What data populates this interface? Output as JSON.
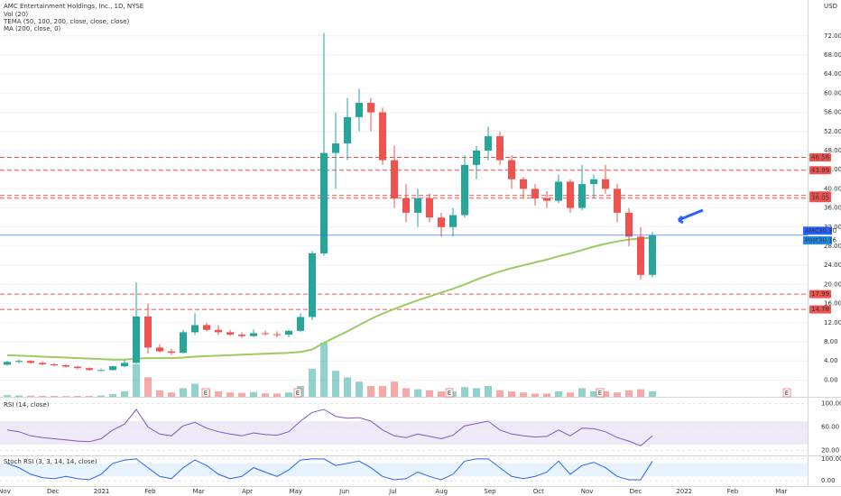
{
  "chart_data": {
    "type": "candlestick",
    "title": "AMC Entertainment Holdings, Inc., 1D, NYSE",
    "indicators": [
      "Vol (20)",
      "TEMA (50, 100, 200, close, close, close)",
      "MA (200, close, 0)"
    ],
    "currency": "USD",
    "up_color": "#26a69a",
    "down_color": "#ef5350",
    "xticks": [
      "Nov",
      "Dec",
      "2021",
      "Feb",
      "Mar",
      "Apr",
      "May",
      "Jun",
      "Jul",
      "Aug",
      "Sep",
      "Oct",
      "Nov",
      "Dec",
      "2022",
      "Feb",
      "Mar"
    ],
    "ylim": [
      -3.5,
      79.5
    ],
    "yticks": [
      {
        "value": 0,
        "label": "0.00"
      },
      {
        "value": 4,
        "label": "4.00"
      },
      {
        "value": 8,
        "label": "8.00"
      },
      {
        "value": 12,
        "label": "12.00"
      },
      {
        "value": 16,
        "label": "16.00"
      },
      {
        "value": 20,
        "label": "20.00"
      },
      {
        "value": 24,
        "label": "24.00"
      },
      {
        "value": 28,
        "label": "28.00"
      },
      {
        "value": 32,
        "label": "32.00"
      },
      {
        "value": 36,
        "label": "36.00"
      },
      {
        "value": 40,
        "label": "40.00"
      },
      {
        "value": 44,
        "label": "44.00"
      },
      {
        "value": 48,
        "label": "48.00"
      },
      {
        "value": 52,
        "label": "52.00"
      },
      {
        "value": 56,
        "label": "56.00"
      },
      {
        "value": 60,
        "label": "60.00"
      },
      {
        "value": 64,
        "label": "64.00"
      },
      {
        "value": 68,
        "label": "68.00"
      },
      {
        "value": 72,
        "label": "72.00"
      }
    ],
    "open": [
      3.2,
      3.8,
      4.0,
      3.6,
      3.3,
      3.1,
      2.8,
      2.5,
      2.1,
      2.1,
      2.9,
      3.6,
      13.3,
      6.8,
      6.0,
      5.7,
      10.0,
      11.5,
      10.5,
      10.0,
      9.5,
      9.2,
      9.8,
      9.6,
      9.5,
      10.3,
      13.2,
      26.5,
      47.5,
      49.5,
      55.0,
      58.0,
      56.0,
      46.0,
      38.0,
      35.0,
      38.0,
      34.0,
      32.0,
      34.5,
      45.0,
      48.0,
      51.0,
      46.0,
      42.0,
      40.0,
      38.0,
      37.5,
      41.5,
      36.0,
      41.0,
      42.0,
      40.0,
      35.0,
      30.0,
      22.0
    ],
    "high": [
      4.0,
      4.3,
      4.2,
      3.9,
      3.6,
      3.3,
      3.0,
      2.7,
      2.4,
      3.0,
      4.2,
      20.4,
      16.0,
      7.5,
      6.6,
      10.5,
      14.0,
      12.0,
      11.5,
      10.5,
      10.0,
      10.6,
      10.4,
      10.2,
      10.5,
      14.0,
      27.0,
      72.6,
      56.0,
      59.0,
      61.0,
      59.0,
      57.0,
      49.0,
      41.0,
      40.0,
      39.0,
      35.0,
      36.0,
      47.0,
      49.0,
      53.0,
      52.0,
      47.0,
      42.5,
      41.0,
      39.5,
      43.0,
      42.0,
      45.0,
      43.0,
      45.0,
      41.0,
      36.0,
      32.0,
      31.0
    ],
    "low": [
      3.0,
      3.5,
      3.4,
      3.1,
      2.9,
      2.6,
      2.3,
      2.0,
      1.9,
      2.0,
      2.7,
      3.4,
      5.5,
      5.8,
      5.2,
      5.5,
      9.5,
      10.2,
      9.5,
      9.2,
      8.8,
      9.0,
      9.4,
      8.9,
      9.0,
      10.0,
      12.5,
      26.0,
      40.0,
      46.0,
      52.0,
      52.0,
      45.0,
      36.0,
      33.0,
      32.0,
      33.0,
      30.0,
      30.0,
      34.0,
      42.0,
      46.0,
      45.0,
      40.0,
      38.0,
      36.5,
      36.0,
      37.0,
      35.0,
      35.5,
      38.0,
      39.0,
      33.0,
      28.0,
      21.0,
      21.5
    ],
    "close": [
      3.8,
      4.0,
      3.6,
      3.3,
      3.1,
      2.8,
      2.5,
      2.1,
      2.1,
      2.9,
      3.6,
      13.3,
      6.8,
      6.0,
      5.7,
      10.0,
      11.5,
      10.5,
      10.0,
      9.5,
      9.2,
      9.8,
      9.6,
      9.5,
      10.3,
      13.2,
      26.5,
      47.5,
      49.5,
      55.0,
      58.0,
      56.0,
      46.0,
      38.0,
      35.0,
      38.0,
      34.0,
      32.0,
      34.5,
      45.0,
      48.0,
      51.0,
      46.0,
      42.0,
      40.0,
      38.0,
      37.5,
      41.5,
      36.0,
      41.0,
      42.0,
      40.0,
      35.0,
      30.0,
      22.0,
      30.3
    ],
    "volume": {
      "values": [
        80,
        60,
        50,
        45,
        40,
        35,
        40,
        45,
        60,
        120,
        250,
        1500,
        900,
        300,
        200,
        400,
        600,
        350,
        250,
        200,
        180,
        220,
        160,
        150,
        200,
        500,
        1300,
        2500,
        1200,
        900,
        700,
        500,
        500,
        700,
        400,
        350,
        300,
        250,
        250,
        450,
        400,
        500,
        300,
        250,
        200,
        150,
        150,
        250,
        200,
        400,
        250,
        250,
        200,
        300,
        350,
        250
      ]
    },
    "ma200": {
      "color": "#9ccc65",
      "values": [
        5.2,
        5.1,
        5.0,
        4.9,
        4.8,
        4.7,
        4.6,
        4.5,
        4.4,
        4.3,
        4.3,
        4.5,
        4.6,
        4.6,
        4.6,
        4.7,
        4.9,
        5.0,
        5.1,
        5.2,
        5.3,
        5.4,
        5.5,
        5.6,
        5.7,
        5.9,
        6.4,
        7.8,
        9.0,
        10.2,
        11.5,
        12.8,
        13.9,
        14.9,
        15.8,
        16.7,
        17.5,
        18.3,
        19.1,
        20.0,
        21.0,
        21.9,
        22.7,
        23.4,
        24.0,
        24.6,
        25.2,
        25.9,
        26.5,
        27.2,
        27.9,
        28.5,
        29.0,
        29.4,
        29.6,
        29.8
      ]
    },
    "levels": [
      {
        "value": 46.58,
        "label": "46.58"
      },
      {
        "value": 43.89,
        "label": "43.89"
      },
      {
        "value": 38.61,
        "label": "38.61"
      },
      {
        "value": 38.05,
        "label": "38.05"
      },
      {
        "value": 17.99,
        "label": "17.99"
      },
      {
        "value": 14.78,
        "label": "14.78"
      }
    ],
    "last_price": {
      "symbol": "AMC",
      "value": 30.3,
      "label": "30.30"
    },
    "post_price": {
      "symbol": "Post",
      "value": 30.16,
      "label": "30.16"
    },
    "earnings": [
      "E",
      "E",
      "E",
      "E",
      "E"
    ],
    "rsi": {
      "title": "RSI (14, close)",
      "color": "#7e57c2",
      "ylim": [
        10,
        110
      ],
      "yticks": [
        {
          "value": 20,
          "label": "20.00"
        },
        {
          "value": 60,
          "label": "60.00"
        },
        {
          "value": 100,
          "label": "100.00"
        }
      ],
      "values": [
        55,
        52,
        45,
        42,
        40,
        38,
        36,
        35,
        40,
        55,
        65,
        90,
        60,
        48,
        45,
        62,
        68,
        58,
        52,
        48,
        45,
        50,
        47,
        46,
        52,
        70,
        85,
        90,
        78,
        75,
        76,
        70,
        55,
        45,
        42,
        48,
        44,
        40,
        46,
        62,
        66,
        70,
        55,
        48,
        45,
        43,
        44,
        55,
        45,
        58,
        57,
        52,
        42,
        36,
        28,
        45
      ]
    },
    "stoch_rsi": {
      "title": "Stoch RSI (3, 3, 14, 14, close)",
      "color": "#2962ff",
      "ylim": [
        -28,
        112
      ],
      "yticks": [
        {
          "value": 0,
          "label": "0.00"
        },
        {
          "value": 100,
          "label": "100.00"
        }
      ],
      "values": [
        80,
        60,
        30,
        15,
        10,
        20,
        10,
        5,
        30,
        80,
        95,
        100,
        60,
        20,
        10,
        60,
        95,
        70,
        30,
        10,
        20,
        60,
        40,
        20,
        50,
        95,
        100,
        100,
        70,
        80,
        90,
        60,
        20,
        5,
        10,
        40,
        20,
        5,
        30,
        90,
        100,
        100,
        60,
        20,
        10,
        20,
        40,
        90,
        30,
        70,
        85,
        60,
        20,
        5,
        5,
        90
      ]
    }
  }
}
